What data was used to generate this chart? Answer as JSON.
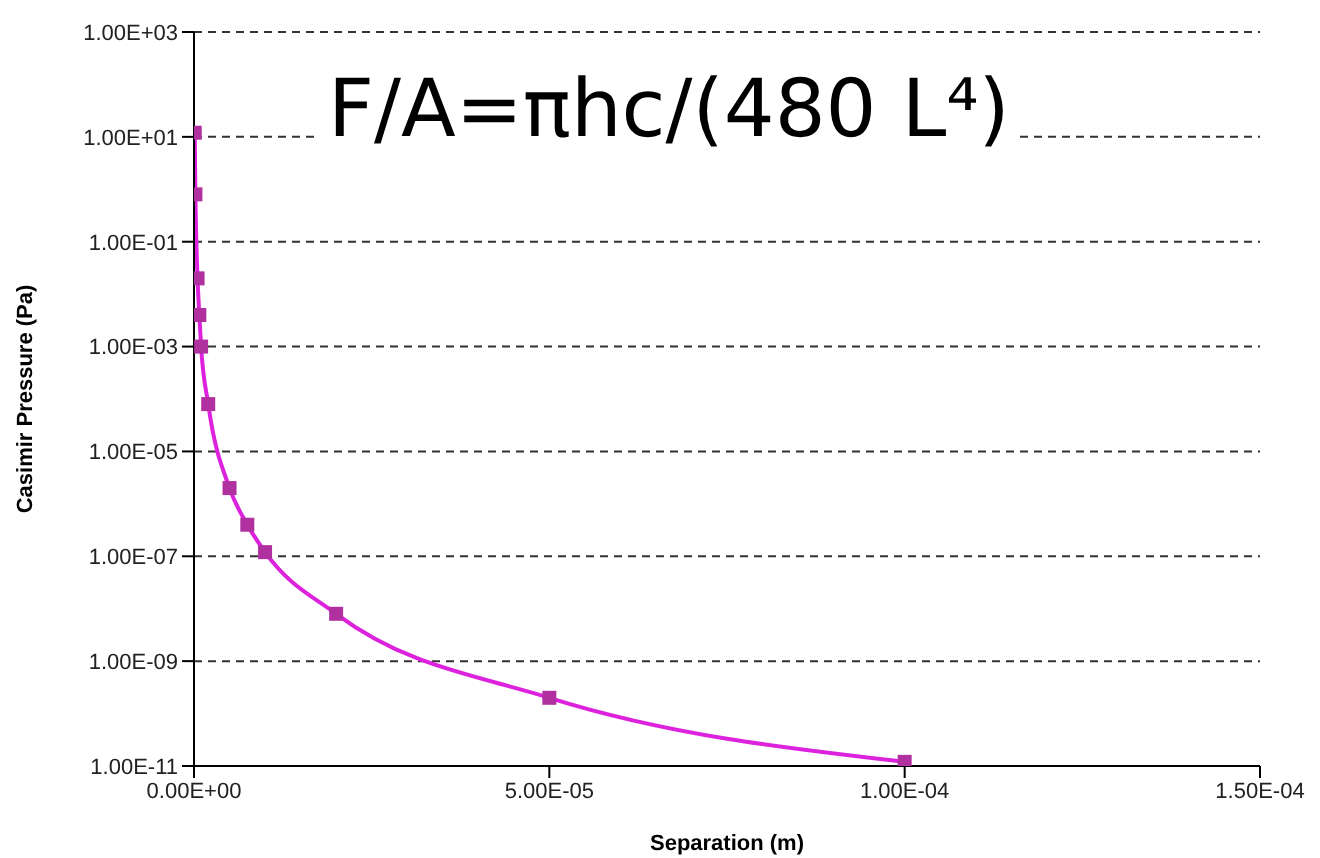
{
  "chart_data": {
    "type": "line",
    "xlabel": "Separation (m)",
    "ylabel": "Casimir Pressure (Pa)",
    "annotations": [
      "F/A=πhc/(480 L⁴)"
    ],
    "x": [
      1e-07,
      2e-07,
      5e-07,
      7.5e-07,
      1e-06,
      2e-06,
      5e-06,
      7.5e-06,
      1e-05,
      2e-05,
      5e-05,
      0.0001
    ],
    "series": [
      {
        "color": "#dd22dd",
        "values": [
          12,
          0.8,
          0.02,
          0.004,
          0.001,
          8e-05,
          2e-06,
          4e-07,
          1.2e-07,
          8e-09,
          2e-10,
          1.2e-11
        ]
      }
    ],
    "log": "y",
    "xlim": [
      0,
      0.00015
    ],
    "ylim": [
      1e-11,
      1000
    ],
    "xticks": [
      {
        "value": 0,
        "label": "0.00E+00"
      },
      {
        "value": 5e-05,
        "label": "5.00E-05"
      },
      {
        "value": 0.0001,
        "label": "1.00E-04"
      },
      {
        "value": 0.00015,
        "label": "1.50E-04"
      }
    ],
    "yticks": [
      {
        "value": 1e-11,
        "label": "1.00E-11"
      },
      {
        "value": 1e-09,
        "label": "1.00E-09"
      },
      {
        "value": 1e-07,
        "label": "1.00E-07"
      },
      {
        "value": 1e-05,
        "label": "1.00E-05"
      },
      {
        "value": 0.001,
        "label": "1.00E-03"
      },
      {
        "value": 0.1,
        "label": "1.00E-01"
      },
      {
        "value": 10,
        "label": "1.00E+01"
      },
      {
        "value": 1000,
        "label": "1.00E+03"
      }
    ],
    "grid": "y",
    "marker": "square",
    "line_style": "solid"
  }
}
